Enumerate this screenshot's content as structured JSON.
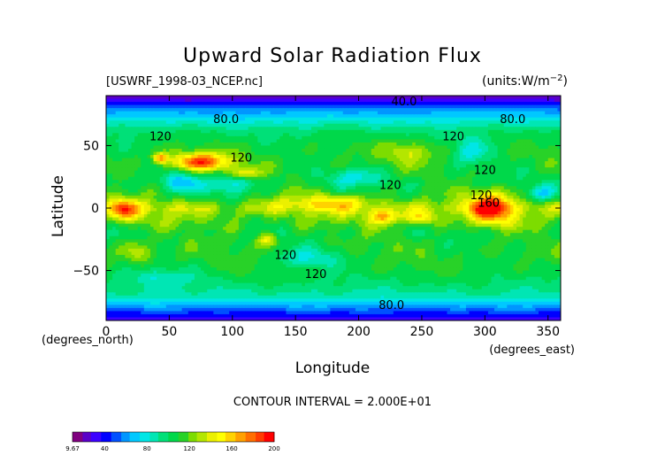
{
  "chart_data": {
    "type": "heatmap",
    "title": "Upward Solar Radiation Flux",
    "file_label": "[USWRF_1998-03_NCEP.nc]",
    "units_label": "(units:W/m^2)",
    "xlabel": "Longitude",
    "ylabel": "Latitude",
    "x_unit_label": "(degrees_east)",
    "y_unit_label": "(degrees_north)",
    "xlim": [
      0,
      360
    ],
    "ylim": [
      -90,
      90
    ],
    "x_ticks": [
      0,
      50,
      100,
      150,
      200,
      250,
      300,
      350
    ],
    "y_ticks": [
      50,
      0,
      -50
    ],
    "contour_interval_label": "CONTOUR INTERVAL = 2.000E+01",
    "contour_labels": [
      {
        "text": "80.0",
        "lon": 95,
        "lat": 71
      },
      {
        "text": "80.0",
        "lon": 322,
        "lat": 71
      },
      {
        "text": "120",
        "lon": 43,
        "lat": 57
      },
      {
        "text": "120",
        "lon": 275,
        "lat": 57
      },
      {
        "text": "120",
        "lon": 107,
        "lat": 40
      },
      {
        "text": "120",
        "lon": 300,
        "lat": 30
      },
      {
        "text": "120",
        "lon": 225,
        "lat": 18
      },
      {
        "text": "120",
        "lon": 297,
        "lat": 10
      },
      {
        "text": "160",
        "lon": 303,
        "lat": 4
      },
      {
        "text": "120",
        "lon": 142,
        "lat": -38
      },
      {
        "text": "120",
        "lon": 166,
        "lat": -53
      },
      {
        "text": "80.0",
        "lon": 226,
        "lat": -78
      },
      {
        "text": "40.0",
        "lon": 236,
        "lat": 85
      }
    ],
    "field": {
      "zonal_profile": [
        {
          "lat": 90,
          "value": 15
        },
        {
          "lat": 86,
          "value": 30
        },
        {
          "lat": 80,
          "value": 55
        },
        {
          "lat": 72,
          "value": 75
        },
        {
          "lat": 62,
          "value": 98
        },
        {
          "lat": 50,
          "value": 108
        },
        {
          "lat": 35,
          "value": 112
        },
        {
          "lat": 20,
          "value": 105
        },
        {
          "lat": 8,
          "value": 115
        },
        {
          "lat": 0,
          "value": 135
        },
        {
          "lat": -8,
          "value": 120
        },
        {
          "lat": -20,
          "value": 108
        },
        {
          "lat": -35,
          "value": 112
        },
        {
          "lat": -50,
          "value": 108
        },
        {
          "lat": -62,
          "value": 98
        },
        {
          "lat": -72,
          "value": 85
        },
        {
          "lat": -78,
          "value": 65
        },
        {
          "lat": -84,
          "value": 45
        },
        {
          "lat": -90,
          "value": 30
        }
      ],
      "features": [
        {
          "lon": 75,
          "lat": 37,
          "dlon": 16,
          "dlat": 5,
          "amp": 75
        },
        {
          "lon": 43,
          "lat": 40,
          "dlon": 4,
          "dlat": 3,
          "amp": 55
        },
        {
          "lon": 305,
          "lat": 0,
          "dlon": 12,
          "dlat": 9,
          "amp": 72
        },
        {
          "lon": 14,
          "lat": -2,
          "dlon": 8,
          "dlat": 6,
          "amp": 52
        },
        {
          "lon": 220,
          "lat": -7,
          "dlon": 9,
          "dlat": 4,
          "amp": 48
        },
        {
          "lon": 250,
          "lat": -8,
          "dlon": 8,
          "dlat": 4,
          "amp": 42
        },
        {
          "lon": 128,
          "lat": -25,
          "dlon": 5,
          "dlat": 4,
          "amp": 40
        },
        {
          "lon": 110,
          "lat": 28,
          "dlon": 8,
          "dlat": 3,
          "amp": 38
        },
        {
          "lon": 180,
          "lat": 5,
          "dlon": 25,
          "dlat": 4,
          "amp": 30
        },
        {
          "lon": 60,
          "lat": 20,
          "dlon": 10,
          "dlat": 6,
          "amp": -35
        },
        {
          "lon": 100,
          "lat": 18,
          "dlon": 12,
          "dlat": 6,
          "amp": -30
        },
        {
          "lon": 345,
          "lat": 12,
          "dlon": 8,
          "dlat": 4,
          "amp": -32
        },
        {
          "lon": 200,
          "lat": 25,
          "dlon": 15,
          "dlat": 5,
          "amp": -25
        },
        {
          "lon": 290,
          "lat": 45,
          "dlon": 10,
          "dlat": 8,
          "amp": -28
        },
        {
          "lon": 160,
          "lat": -40,
          "dlon": 20,
          "dlat": 6,
          "amp": -25
        },
        {
          "lon": 40,
          "lat": -55,
          "dlon": 20,
          "dlat": 5,
          "amp": -20
        },
        {
          "lon": 240,
          "lat": 45,
          "dlon": 14,
          "dlat": 6,
          "amp": 25
        },
        {
          "lon": 25,
          "lat": -35,
          "dlon": 8,
          "dlat": 6,
          "amp": 25
        }
      ]
    },
    "colorbar": {
      "ticks": [
        "9.67",
        "40",
        "80",
        "120",
        "160",
        "200"
      ],
      "tick_values": [
        9.67,
        40,
        80,
        120,
        160,
        200
      ],
      "range": [
        9.67,
        200
      ],
      "colors": [
        "#800080",
        "#5a00c8",
        "#3c00ff",
        "#0000ff",
        "#0050ff",
        "#0096ff",
        "#00c8ff",
        "#00e6e6",
        "#00e6b4",
        "#00e078",
        "#00d84a",
        "#28d228",
        "#7ddc00",
        "#b4e600",
        "#ebf000",
        "#ffff00",
        "#ffd200",
        "#ffa000",
        "#ff6e00",
        "#ff3c00",
        "#ff0000"
      ]
    }
  }
}
